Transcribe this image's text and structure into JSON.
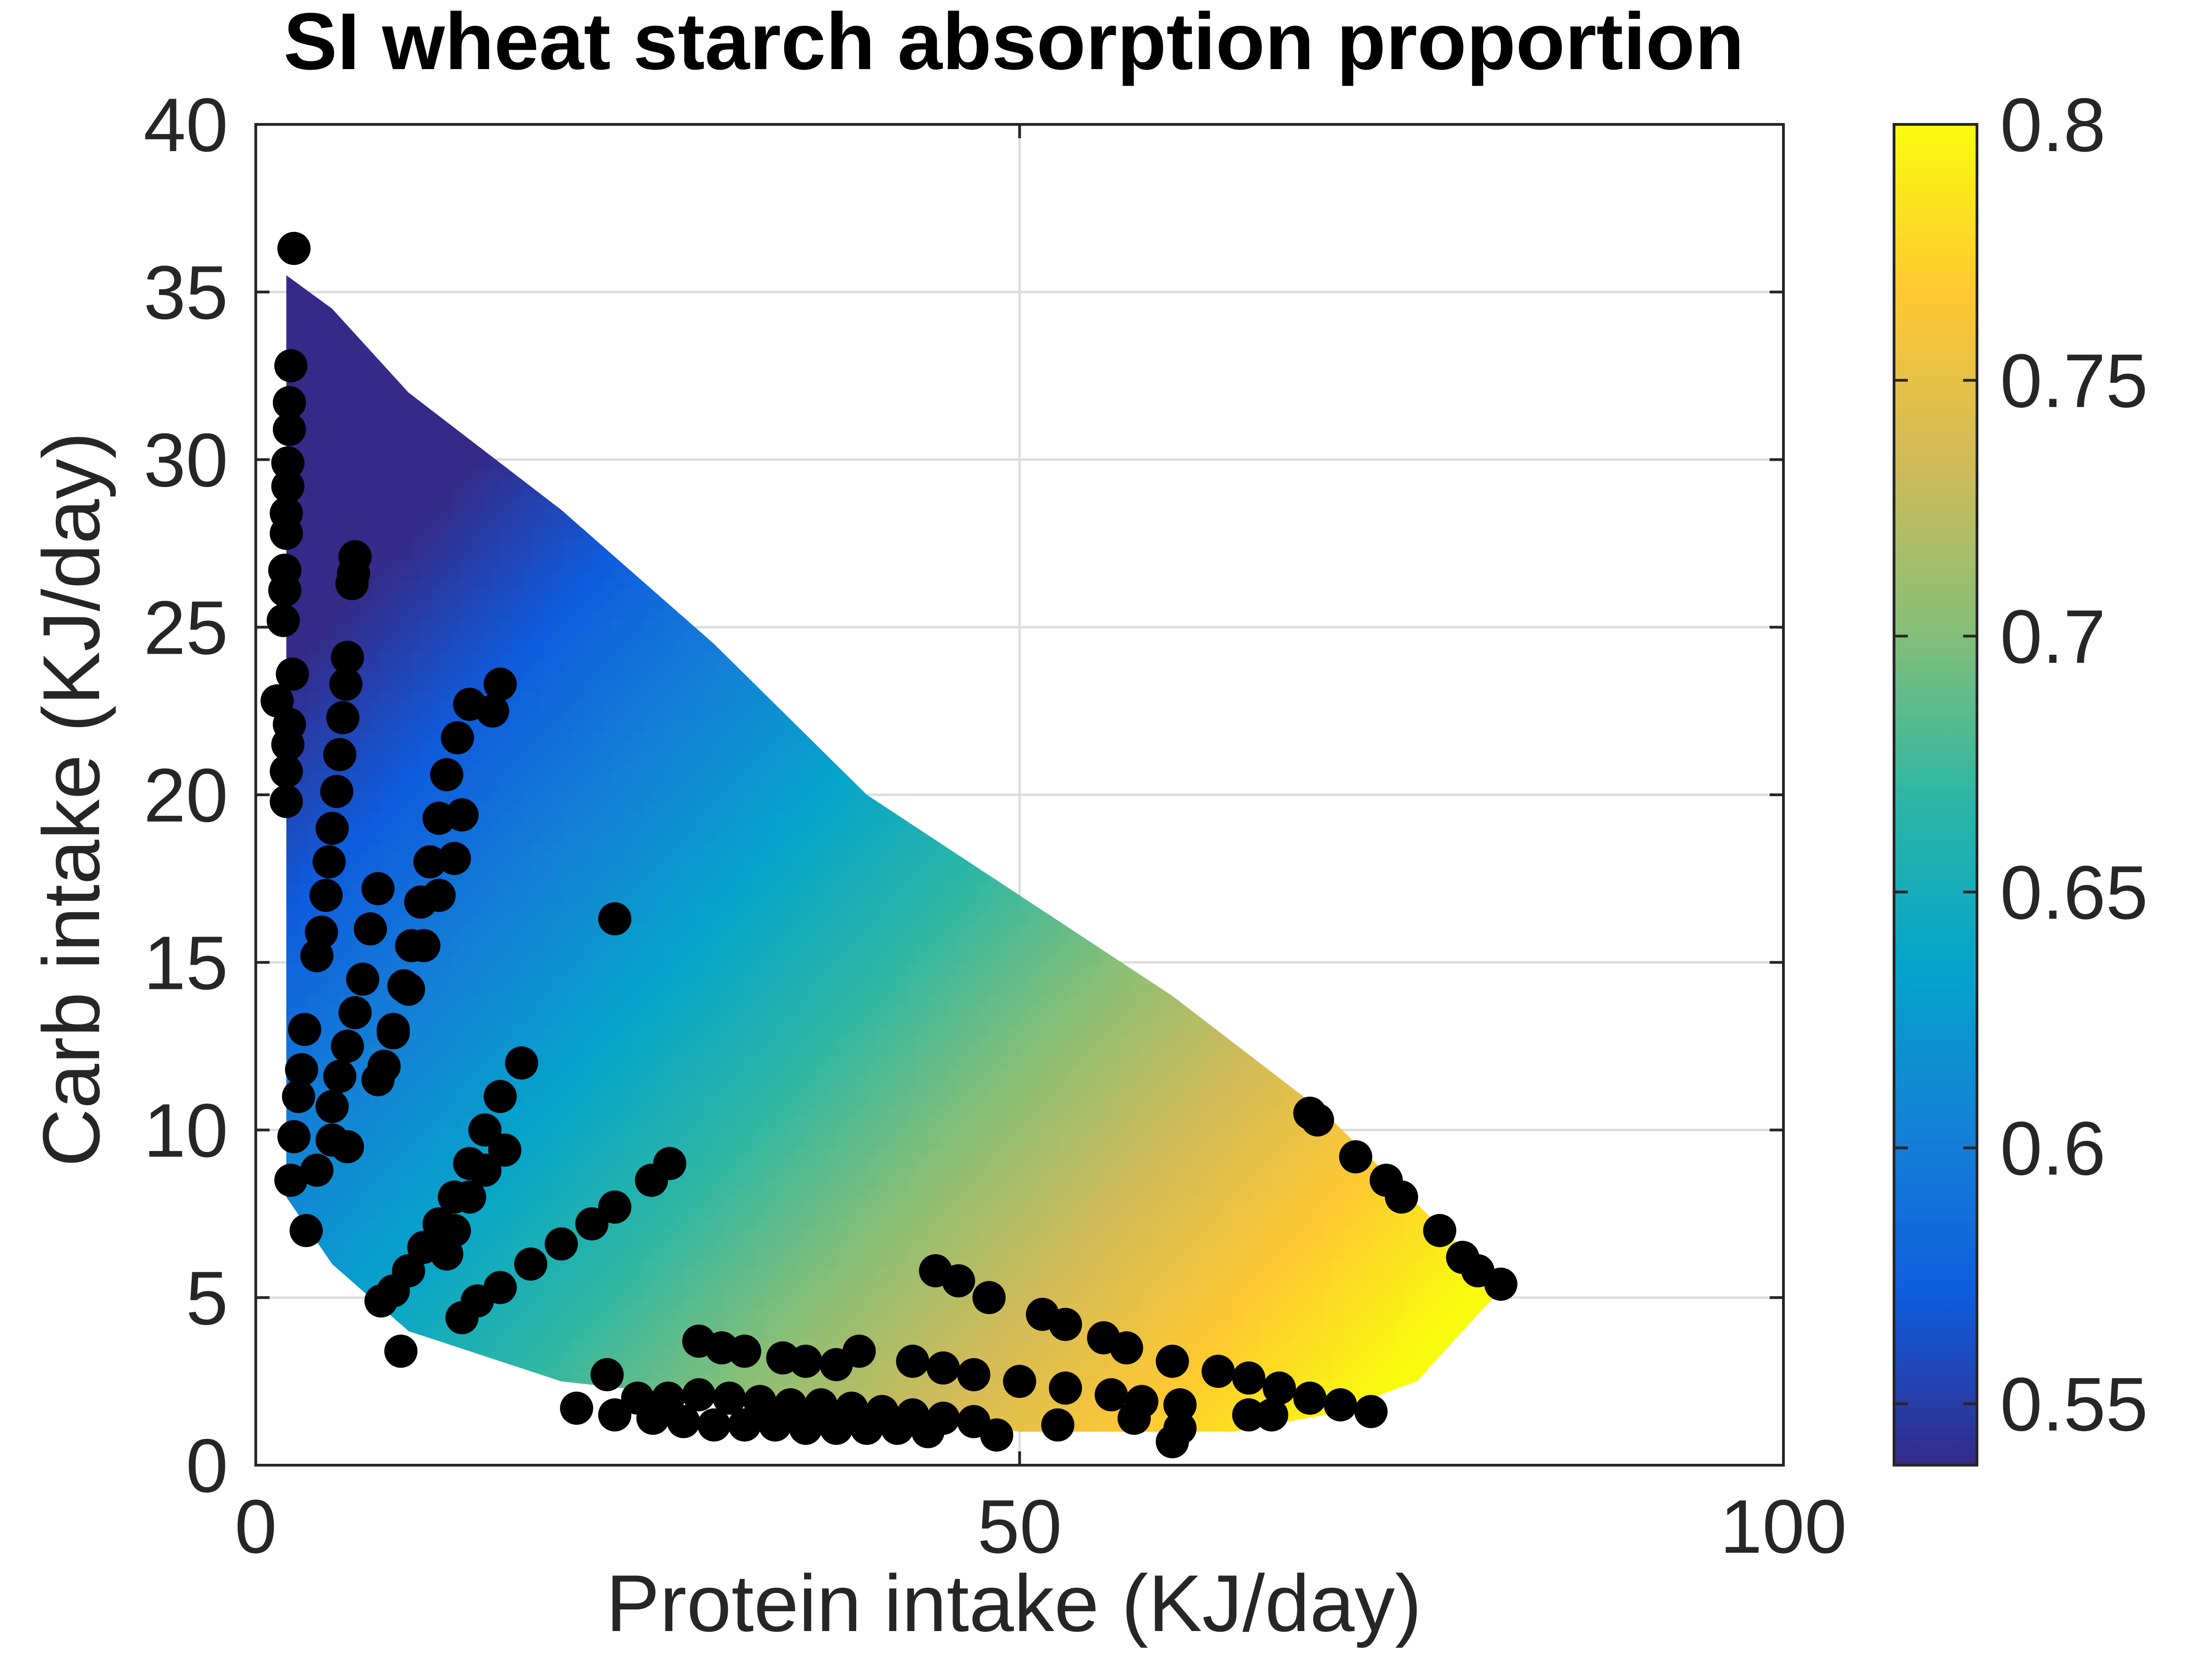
{
  "chart_data": {
    "type": "heatmap",
    "title": "SI wheat starch absorption proportion",
    "xlabel": "Protein intake (KJ/day)",
    "ylabel": "Carb intake (KJ/day)",
    "xlim": [
      0,
      100
    ],
    "ylim": [
      0,
      40
    ],
    "xticks": [
      "0",
      "50",
      "100"
    ],
    "yticks": [
      "0",
      "5",
      "10",
      "15",
      "20",
      "25",
      "30",
      "35",
      "40"
    ],
    "grid": true,
    "colorbar": {
      "range": [
        0.538,
        0.8
      ],
      "ticks": [
        "0.55",
        "0.6",
        "0.65",
        "0.7",
        "0.75",
        "0.8"
      ],
      "colormap": [
        "#352a87",
        "#0f5cdd",
        "#1481d6",
        "#06a4ca",
        "#2eb7a4",
        "#87bf77",
        "#d1bb59",
        "#fec832",
        "#f9fb0e"
      ]
    },
    "surface": {
      "boundary": [
        [
          2,
          35.5
        ],
        [
          5,
          34.5
        ],
        [
          10,
          32
        ],
        [
          20,
          28.5
        ],
        [
          30,
          24.5
        ],
        [
          40,
          20
        ],
        [
          50,
          17
        ],
        [
          60,
          14
        ],
        [
          70,
          10.5
        ],
        [
          80,
          6
        ],
        [
          82,
          5.5
        ],
        [
          76,
          2.5
        ],
        [
          70,
          1.5
        ],
        [
          64,
          1
        ],
        [
          57,
          1
        ],
        [
          50,
          1
        ],
        [
          40,
          1.5
        ],
        [
          30,
          2
        ],
        [
          20,
          2.5
        ],
        [
          10,
          4
        ],
        [
          5,
          6
        ],
        [
          2,
          8
        ]
      ],
      "values_note": "absorption increases toward high protein and low carb"
    },
    "points": [
      [
        2.5,
        36.3
      ],
      [
        2.3,
        32.8
      ],
      [
        2.2,
        31.7
      ],
      [
        2.2,
        30.9
      ],
      [
        2.1,
        29.9
      ],
      [
        2.1,
        29.2
      ],
      [
        2.0,
        28.4
      ],
      [
        2.0,
        27.8
      ],
      [
        1.9,
        26.7
      ],
      [
        1.9,
        26.1
      ],
      [
        1.8,
        25.2
      ],
      [
        2.4,
        23.6
      ],
      [
        1.4,
        22.8
      ],
      [
        2.2,
        22.1
      ],
      [
        2.1,
        21.5
      ],
      [
        2.0,
        20.7
      ],
      [
        2.0,
        19.8
      ],
      [
        6.5,
        27.1
      ],
      [
        6.4,
        26.6
      ],
      [
        6.3,
        26.3
      ],
      [
        6.0,
        24.1
      ],
      [
        5.9,
        23.3
      ],
      [
        5.7,
        22.3
      ],
      [
        5.5,
        21.2
      ],
      [
        5.3,
        20.1
      ],
      [
        5.0,
        19.0
      ],
      [
        4.8,
        18.0
      ],
      [
        4.6,
        17.0
      ],
      [
        4.3,
        15.9
      ],
      [
        4.0,
        15.2
      ],
      [
        16.0,
        23.3
      ],
      [
        15.5,
        22.5
      ],
      [
        14.0,
        22.7
      ],
      [
        13.2,
        21.7
      ],
      [
        12.5,
        20.6
      ],
      [
        12.0,
        19.3
      ],
      [
        11.4,
        18.0
      ],
      [
        10.8,
        16.8
      ],
      [
        10.2,
        15.5
      ],
      [
        9.7,
        14.3
      ],
      [
        9.0,
        13.0
      ],
      [
        8.4,
        11.9
      ],
      [
        13.5,
        19.4
      ],
      [
        13.0,
        18.1
      ],
      [
        12.0,
        17.0
      ],
      [
        11.0,
        15.5
      ],
      [
        10.0,
        14.2
      ],
      [
        9.0,
        12.9
      ],
      [
        8.0,
        11.5
      ],
      [
        8.0,
        17.2
      ],
      [
        7.5,
        16.0
      ],
      [
        7.0,
        14.5
      ],
      [
        6.5,
        13.5
      ],
      [
        6.0,
        12.5
      ],
      [
        5.5,
        11.6
      ],
      [
        5.0,
        10.7
      ],
      [
        3.2,
        13.0
      ],
      [
        3.0,
        11.8
      ],
      [
        2.8,
        11.0
      ],
      [
        2.5,
        9.8
      ],
      [
        2.3,
        8.5
      ],
      [
        3.3,
        7.0
      ],
      [
        4.0,
        8.8
      ],
      [
        5.0,
        9.7
      ],
      [
        6.0,
        9.5
      ],
      [
        17.4,
        12.0
      ],
      [
        16.0,
        11.0
      ],
      [
        15.0,
        10.0
      ],
      [
        14.0,
        9.0
      ],
      [
        13.0,
        8.0
      ],
      [
        12.0,
        7.2
      ],
      [
        11.0,
        6.5
      ],
      [
        10.0,
        5.8
      ],
      [
        9.0,
        5.2
      ],
      [
        8.2,
        4.9
      ],
      [
        16.3,
        9.4
      ],
      [
        15.0,
        8.8
      ],
      [
        14.0,
        8.0
      ],
      [
        13.0,
        7.0
      ],
      [
        12.5,
        6.3
      ],
      [
        13.5,
        4.4
      ],
      [
        14.5,
        4.9
      ],
      [
        16.0,
        5.3
      ],
      [
        18.0,
        6.0
      ],
      [
        20.0,
        6.6
      ],
      [
        22.0,
        7.2
      ],
      [
        23.5,
        7.7
      ],
      [
        27.1,
        9.0
      ],
      [
        25.9,
        8.5
      ],
      [
        9.5,
        3.4
      ],
      [
        23.5,
        16.3
      ],
      [
        69.0,
        10.5
      ],
      [
        69.5,
        10.3
      ],
      [
        72.0,
        9.2
      ],
      [
        74.0,
        8.5
      ],
      [
        75.0,
        8.0
      ],
      [
        77.5,
        7.0
      ],
      [
        79.0,
        6.2
      ],
      [
        80.0,
        5.8
      ],
      [
        81.5,
        5.4
      ],
      [
        44.5,
        5.8
      ],
      [
        46.0,
        5.5
      ],
      [
        48.0,
        5.0
      ],
      [
        51.5,
        4.5
      ],
      [
        53.0,
        4.2
      ],
      [
        55.5,
        3.8
      ],
      [
        57.0,
        3.5
      ],
      [
        60.0,
        3.1
      ],
      [
        63.0,
        2.8
      ],
      [
        65.0,
        2.6
      ],
      [
        67.0,
        2.3
      ],
      [
        69.0,
        2.0
      ],
      [
        71.0,
        1.8
      ],
      [
        73.0,
        1.6
      ],
      [
        29.0,
        3.7
      ],
      [
        30.5,
        3.5
      ],
      [
        32.0,
        3.4
      ],
      [
        34.5,
        3.2
      ],
      [
        36.0,
        3.1
      ],
      [
        38.0,
        3.0
      ],
      [
        39.5,
        3.4
      ],
      [
        43.0,
        3.1
      ],
      [
        45.0,
        2.9
      ],
      [
        47.0,
        2.7
      ],
      [
        50.0,
        2.5
      ],
      [
        53.0,
        2.3
      ],
      [
        56.0,
        2.1
      ],
      [
        58.0,
        1.9
      ],
      [
        60.5,
        1.8
      ],
      [
        23.0,
        2.7
      ],
      [
        25.0,
        2.0
      ],
      [
        27.0,
        2.0
      ],
      [
        29.0,
        2.1
      ],
      [
        31.0,
        2.0
      ],
      [
        33.0,
        1.9
      ],
      [
        35.0,
        1.8
      ],
      [
        37.0,
        1.8
      ],
      [
        39.0,
        1.7
      ],
      [
        41.0,
        1.6
      ],
      [
        43.0,
        1.5
      ],
      [
        45.0,
        1.4
      ],
      [
        47.0,
        1.3
      ],
      [
        21.0,
        1.7
      ],
      [
        23.5,
        1.5
      ],
      [
        26.0,
        1.4
      ],
      [
        28.0,
        1.3
      ],
      [
        30.0,
        1.2
      ],
      [
        32.0,
        1.2
      ],
      [
        34.0,
        1.2
      ],
      [
        36.0,
        1.1
      ],
      [
        38.0,
        1.1
      ],
      [
        40.0,
        1.1
      ],
      [
        42.0,
        1.1
      ],
      [
        44.0,
        1.0
      ],
      [
        48.5,
        0.9
      ],
      [
        52.5,
        1.2
      ],
      [
        57.5,
        1.4
      ],
      [
        60.0,
        0.7
      ],
      [
        60.5,
        1.1
      ],
      [
        65.0,
        1.5
      ],
      [
        66.5,
        1.5
      ],
      [
        73.0,
        1.6
      ]
    ]
  }
}
